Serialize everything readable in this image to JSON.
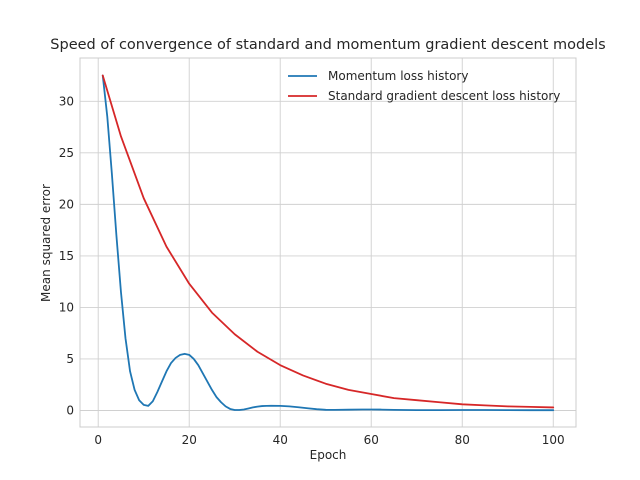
{
  "chart_data": {
    "type": "line",
    "title": "Speed of convergence of standard and momentum gradient descent models",
    "xlabel": "Epoch",
    "ylabel": "Mean squared error",
    "xlim": [
      -4,
      105
    ],
    "ylim": [
      -1.6,
      34.2
    ],
    "xticks": [
      0,
      20,
      40,
      60,
      80,
      100
    ],
    "yticks": [
      0,
      5,
      10,
      15,
      20,
      25,
      30
    ],
    "grid": true,
    "legend_position": "top-right",
    "series": [
      {
        "name": "Momentum loss history",
        "color": "#1f77b4",
        "x": [
          1,
          2,
          3,
          4,
          5,
          6,
          7,
          8,
          9,
          10,
          11,
          12,
          13,
          14,
          15,
          16,
          17,
          18,
          19,
          20,
          21,
          22,
          23,
          24,
          25,
          26,
          27,
          28,
          29,
          30,
          31,
          32,
          33,
          34,
          35,
          36,
          37,
          38,
          40,
          42,
          44,
          46,
          48,
          50,
          52,
          55,
          58,
          60,
          62,
          65,
          70,
          75,
          80,
          85,
          90,
          95,
          100
        ],
        "y": [
          32.5,
          28.5,
          23.0,
          17.0,
          11.5,
          7.0,
          3.8,
          2.0,
          1.0,
          0.55,
          0.45,
          0.9,
          1.8,
          2.8,
          3.8,
          4.6,
          5.1,
          5.4,
          5.5,
          5.4,
          5.0,
          4.4,
          3.6,
          2.8,
          2.0,
          1.3,
          0.8,
          0.4,
          0.15,
          0.05,
          0.05,
          0.1,
          0.2,
          0.3,
          0.38,
          0.43,
          0.45,
          0.46,
          0.45,
          0.4,
          0.32,
          0.22,
          0.13,
          0.07,
          0.06,
          0.08,
          0.1,
          0.1,
          0.09,
          0.06,
          0.04,
          0.04,
          0.05,
          0.05,
          0.04,
          0.03,
          0.03
        ]
      },
      {
        "name": "Standard gradient descent loss history",
        "color": "#d62728",
        "x": [
          1,
          5,
          10,
          15,
          20,
          25,
          30,
          35,
          40,
          45,
          50,
          55,
          60,
          65,
          70,
          75,
          80,
          85,
          90,
          95,
          100
        ],
        "y": [
          32.5,
          26.6,
          20.6,
          15.9,
          12.3,
          9.5,
          7.4,
          5.7,
          4.4,
          3.4,
          2.6,
          2.0,
          1.6,
          1.2,
          1.0,
          0.8,
          0.6,
          0.5,
          0.4,
          0.35,
          0.3
        ]
      }
    ]
  }
}
